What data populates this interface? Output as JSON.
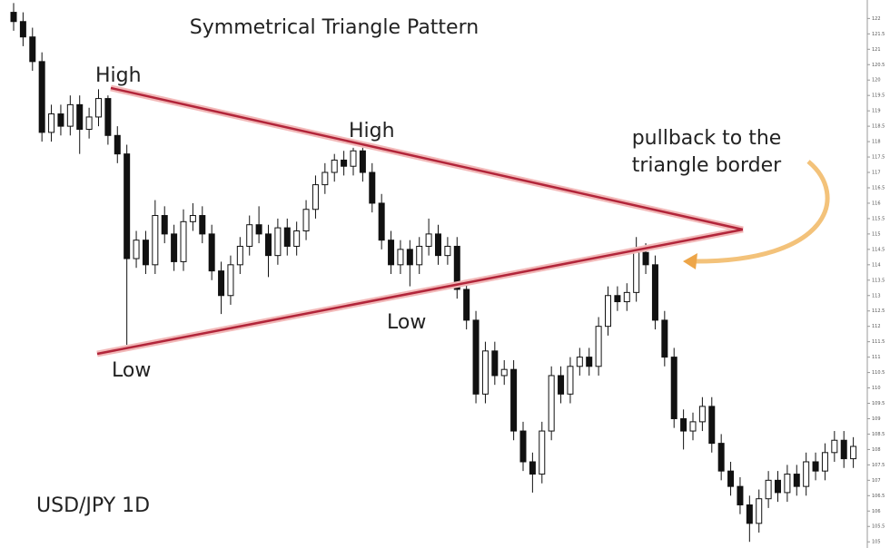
{
  "chart_data": {
    "type": "candlestick",
    "title": "Symmetrical Triangle Pattern",
    "symbol_label": "USD/JPY 1D",
    "annotations": [
      "High",
      "High",
      "Low",
      "Low"
    ],
    "callout": [
      "pullback to the",
      "triangle border"
    ],
    "ylim": [
      104.8,
      122.6
    ],
    "yticks": [
      105,
      105.5,
      106,
      106.5,
      107,
      107.5,
      108,
      108.5,
      109,
      109.5,
      110,
      110.5,
      111,
      111.5,
      112,
      112.5,
      113,
      113.5,
      114,
      114.5,
      115,
      115.5,
      116,
      116.5,
      117,
      117.5,
      118,
      118.5,
      119,
      119.5,
      120,
      120.5,
      121,
      121.5,
      122
    ],
    "up_color": "#ffffff",
    "down_color": "#111111",
    "candles": {
      "open": [
        122.2,
        121.9,
        121.4,
        120.6,
        118.3,
        118.9,
        118.5,
        119.2,
        118.4,
        118.8,
        119.4,
        118.2,
        117.6,
        114.2,
        114.8,
        114.0,
        115.6,
        115.0,
        114.1,
        115.4,
        115.6,
        115.0,
        113.8,
        113.0,
        114.0,
        114.6,
        115.3,
        115.0,
        114.3,
        115.2,
        114.6,
        115.1,
        115.8,
        116.6,
        117.0,
        117.4,
        117.2,
        117.7,
        117.0,
        116.0,
        114.8,
        114.0,
        114.5,
        114.0,
        114.6,
        115.0,
        114.3,
        114.6,
        113.2,
        112.2,
        109.8,
        111.2,
        110.4,
        110.6,
        108.6,
        107.6,
        107.2,
        108.6,
        110.4,
        109.8,
        110.7,
        111.0,
        110.7,
        112.0,
        113.0,
        112.8,
        113.1,
        114.4,
        114.0,
        112.2,
        111.0,
        109.0,
        108.6,
        108.9,
        109.4,
        108.2,
        107.3,
        106.8,
        106.2,
        105.6,
        106.4,
        107.0,
        106.6,
        107.2,
        106.8,
        107.6,
        107.3,
        107.9,
        108.3,
        107.7
      ],
      "high": [
        122.5,
        122.2,
        121.7,
        120.9,
        119.2,
        119.2,
        119.5,
        119.5,
        119.1,
        119.7,
        119.5,
        118.5,
        117.9,
        115.1,
        115.1,
        116.1,
        115.9,
        115.3,
        115.8,
        116.0,
        115.9,
        115.3,
        114.1,
        114.3,
        114.9,
        115.6,
        115.9,
        115.3,
        115.5,
        115.5,
        115.4,
        116.1,
        116.9,
        117.3,
        117.6,
        117.7,
        117.8,
        117.8,
        117.3,
        116.3,
        115.1,
        114.8,
        114.8,
        114.9,
        115.5,
        115.3,
        114.9,
        114.9,
        113.5,
        112.5,
        111.5,
        111.5,
        110.9,
        110.9,
        108.9,
        107.9,
        108.9,
        110.7,
        110.7,
        111.0,
        111.3,
        111.3,
        112.3,
        113.3,
        113.3,
        113.4,
        114.9,
        114.7,
        114.3,
        112.5,
        111.3,
        109.3,
        109.2,
        109.7,
        109.7,
        108.5,
        107.6,
        107.1,
        106.5,
        106.7,
        107.3,
        107.3,
        107.5,
        107.5,
        107.9,
        107.9,
        108.2,
        108.6,
        108.6,
        108.4
      ],
      "low": [
        121.6,
        121.1,
        120.3,
        118.0,
        118.0,
        118.2,
        118.2,
        117.6,
        118.1,
        118.5,
        117.9,
        117.3,
        111.4,
        113.9,
        113.7,
        113.7,
        114.7,
        113.8,
        113.8,
        115.1,
        114.7,
        113.5,
        112.4,
        112.7,
        113.7,
        114.3,
        114.7,
        113.6,
        114.0,
        114.3,
        114.3,
        114.8,
        115.5,
        116.3,
        116.7,
        116.9,
        116.9,
        116.7,
        115.7,
        114.5,
        113.7,
        113.7,
        113.3,
        113.7,
        114.3,
        114.0,
        114.0,
        112.9,
        111.9,
        109.5,
        109.5,
        110.1,
        110.1,
        108.3,
        107.3,
        106.6,
        106.9,
        108.3,
        109.5,
        109.5,
        110.4,
        110.4,
        110.4,
        111.7,
        112.5,
        112.5,
        112.8,
        113.7,
        111.9,
        110.7,
        108.7,
        108.0,
        108.3,
        108.6,
        107.9,
        107.0,
        106.5,
        105.9,
        105.0,
        105.3,
        106.1,
        106.3,
        106.3,
        106.5,
        106.5,
        107.0,
        107.0,
        107.6,
        107.4,
        107.4
      ],
      "close": [
        121.9,
        121.4,
        120.6,
        118.3,
        118.9,
        118.5,
        119.2,
        118.4,
        118.8,
        119.4,
        118.2,
        117.6,
        114.2,
        114.8,
        114.0,
        115.6,
        115.0,
        114.1,
        115.4,
        115.6,
        115.0,
        113.8,
        113.0,
        114.0,
        114.6,
        115.3,
        115.0,
        114.3,
        115.2,
        114.6,
        115.1,
        115.8,
        116.6,
        117.0,
        117.4,
        117.2,
        117.7,
        117.0,
        116.0,
        114.8,
        114.0,
        114.5,
        114.0,
        114.6,
        115.0,
        114.3,
        114.6,
        113.2,
        112.2,
        109.8,
        111.2,
        110.4,
        110.6,
        108.6,
        107.6,
        107.2,
        108.6,
        110.4,
        109.8,
        110.7,
        111.0,
        110.7,
        112.0,
        113.0,
        112.8,
        113.1,
        114.4,
        114.0,
        112.2,
        111.0,
        109.0,
        108.6,
        108.9,
        109.4,
        108.2,
        107.3,
        106.8,
        106.2,
        105.6,
        106.4,
        107.0,
        106.6,
        107.2,
        106.8,
        107.6,
        107.3,
        107.9,
        108.3,
        107.7,
        108.1
      ]
    }
  }
}
